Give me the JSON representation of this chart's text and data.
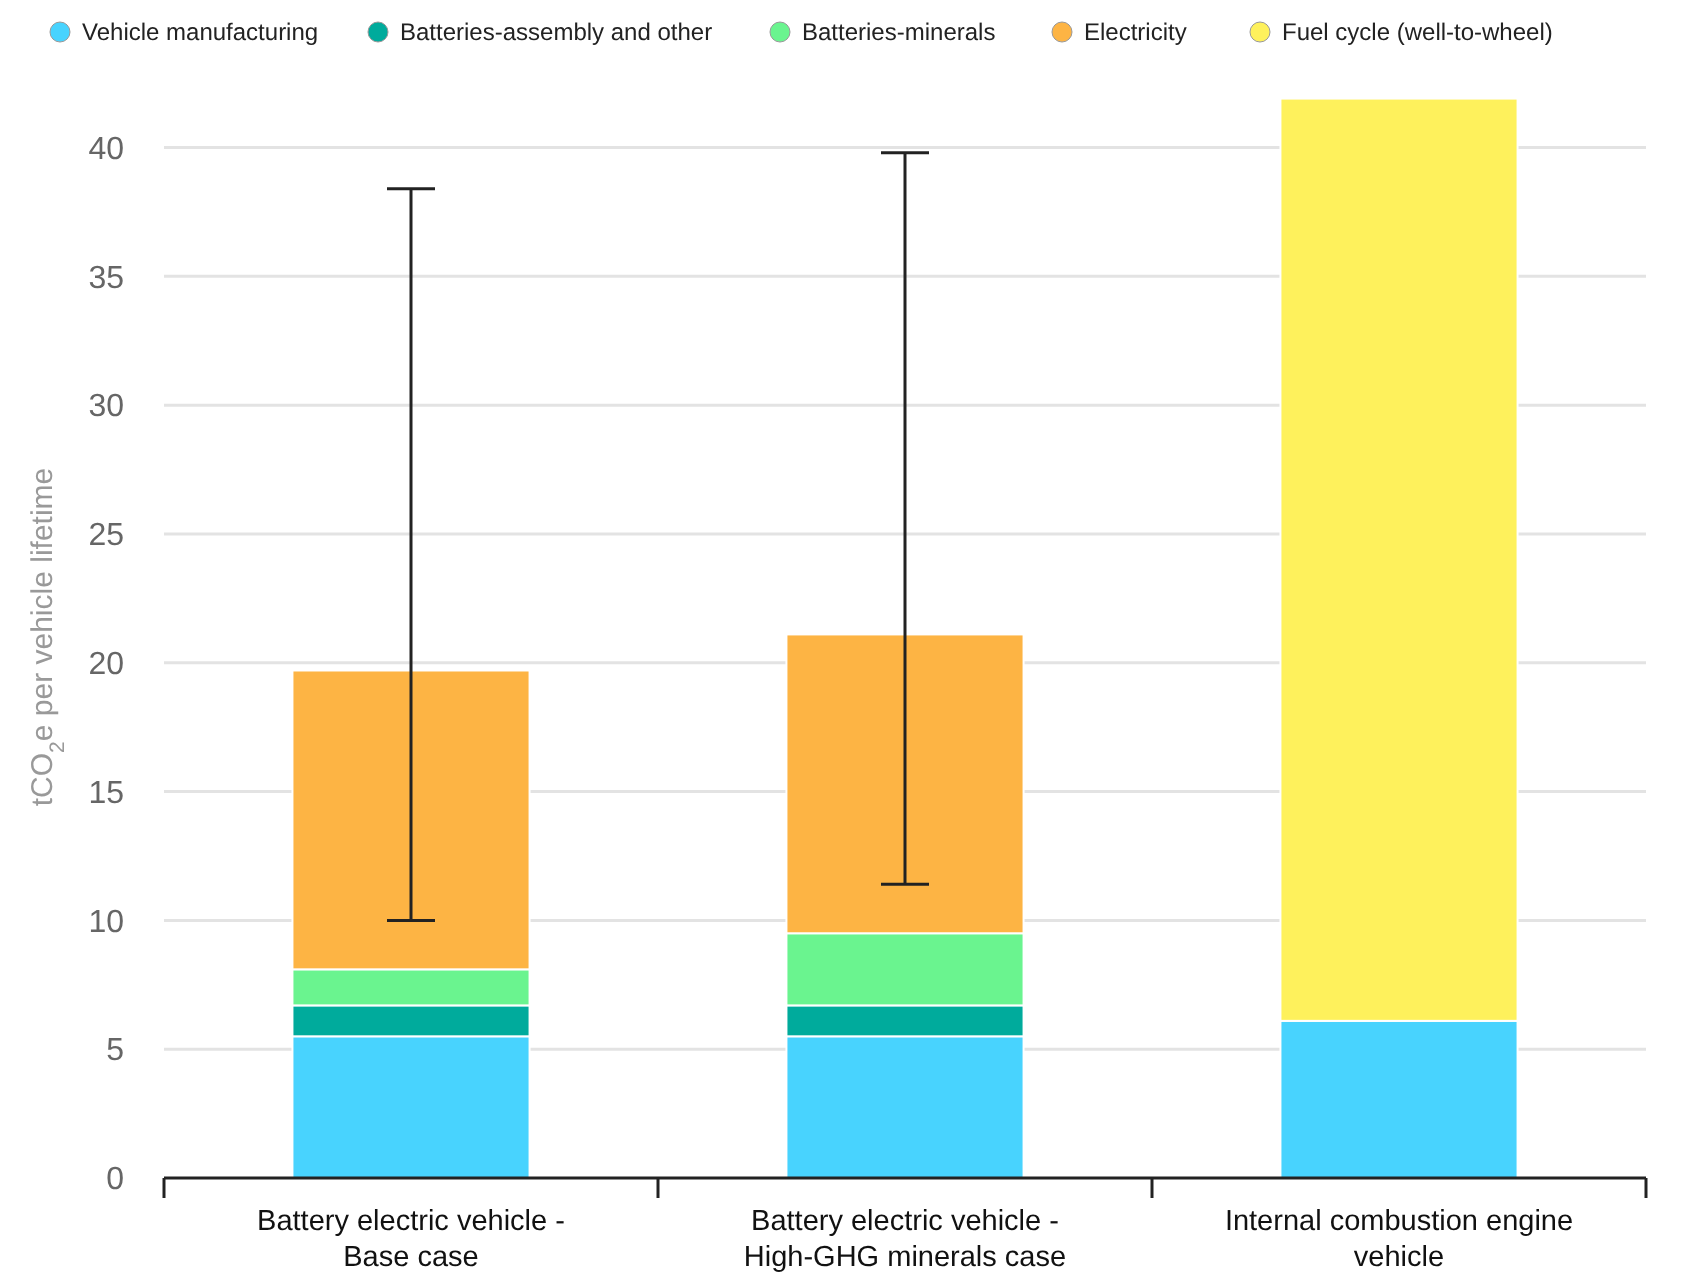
{
  "chart_data": {
    "type": "bar",
    "stacked": true,
    "ylabel": "tCO$_{2}$e per vehicle lifetime",
    "categories": [
      "Battery electric vehicle - Base case",
      "Battery electric vehicle - High-GHG minerals case",
      "Internal combustion engine vehicle"
    ],
    "series": [
      {
        "name": "Vehicle manufacturing",
        "color": "#48d3fe",
        "values": [
          5.5,
          5.5,
          6.1
        ]
      },
      {
        "name": "Batteries-assembly and other",
        "color": "#00ab9c",
        "values": [
          1.2,
          1.2,
          null
        ]
      },
      {
        "name": "Batteries-minerals",
        "color": "#6af48f",
        "values": [
          1.4,
          2.8,
          null
        ]
      },
      {
        "name": "Electricity",
        "color": "#fdb444",
        "values": [
          11.6,
          11.6,
          null
        ],
        "errors": [
          [
            10,
            38.4
          ],
          [
            11.4,
            39.8
          ],
          null
        ]
      },
      {
        "name": "Fuel cycle (well-to-wheel)",
        "color": "#fef15c",
        "values": [
          null,
          null,
          35.8
        ]
      }
    ],
    "ylim": [
      0,
      42
    ],
    "yticks": [
      0,
      5,
      10,
      15,
      20,
      25,
      30,
      35,
      40
    ],
    "grid": "y",
    "legend": "top"
  }
}
